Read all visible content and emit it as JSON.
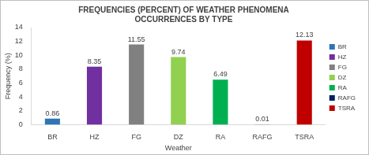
{
  "chart_data": {
    "type": "bar",
    "title": [
      "FREQUENCIES (PERCENT) OF WEATHER PHENOMENA",
      "OCCURRENCES BY TYPE"
    ],
    "x_label": "Weather",
    "y_label": "Frequency (%)",
    "categories": [
      "BR",
      "HZ",
      "FG",
      "DZ",
      "RA",
      "RAFG",
      "TSRA"
    ],
    "values": [
      0.86,
      8.35,
      11.55,
      9.74,
      6.49,
      0.01,
      12.13
    ],
    "colors": [
      "#2e75b6",
      "#7030a0",
      "#808080",
      "#92d050",
      "#00b050",
      "#002060",
      "#c00000"
    ],
    "ylim": [
      0,
      14
    ],
    "yticks": [
      0,
      2,
      4,
      6,
      8,
      10,
      12,
      14
    ],
    "grid": false,
    "legend": "right",
    "data_labels": true
  }
}
